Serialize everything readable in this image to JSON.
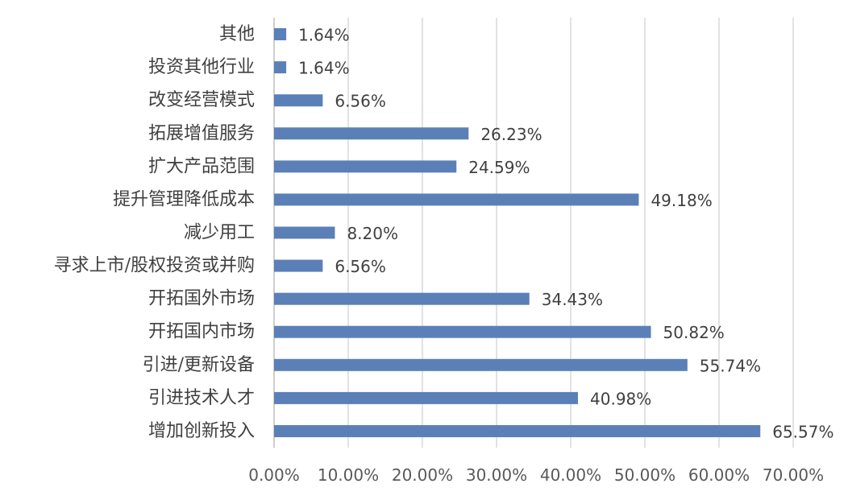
{
  "chart_data": {
    "type": "bar",
    "orientation": "horizontal",
    "categories": [
      "其他",
      "投资其他行业",
      "改变经营模式",
      "拓展增值服务",
      "扩大产品范围",
      "提升管理降低成本",
      "减少用工",
      "寻求上市/股权投资或并购",
      "开拓国外市场",
      "开拓国内市场",
      "引进/更新设备",
      "引进技术人才",
      "增加创新投入"
    ],
    "values": [
      1.64,
      1.64,
      6.56,
      26.23,
      24.59,
      49.18,
      8.2,
      6.56,
      34.43,
      50.82,
      55.74,
      40.98,
      65.57
    ],
    "value_labels": [
      "1.64%",
      "1.64%",
      "6.56%",
      "26.23%",
      "24.59%",
      "49.18%",
      "8.20%",
      "6.56%",
      "34.43%",
      "50.82%",
      "55.74%",
      "40.98%",
      "65.57%"
    ],
    "xlim": [
      0,
      70
    ],
    "ticks": [
      0,
      10,
      20,
      30,
      40,
      50,
      60,
      70
    ],
    "tick_labels": [
      "0.00%",
      "10.00%",
      "20.00%",
      "30.00%",
      "40.00%",
      "50.00%",
      "60.00%",
      "70.00%"
    ],
    "grid": true,
    "legend": "none",
    "bar_color": "#5b80b8",
    "title": "",
    "xlabel": "",
    "ylabel": ""
  }
}
